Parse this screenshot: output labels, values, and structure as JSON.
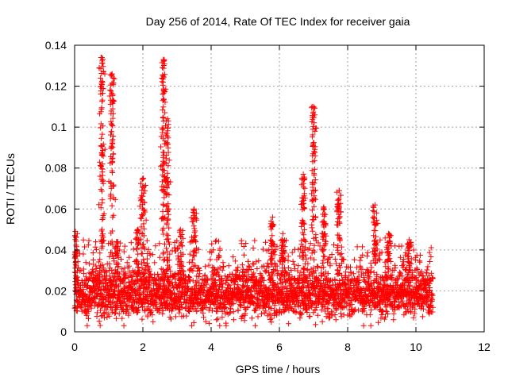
{
  "chart_data": {
    "type": "scatter",
    "title": "Day 256 of 2014, Rate Of TEC Index for receiver gaia",
    "xlabel": "GPS time / hours",
    "ylabel": "ROTI / TECUs",
    "xlim": [
      0,
      12
    ],
    "ylim": [
      0,
      0.14
    ],
    "xticks": [
      0,
      2,
      4,
      6,
      8,
      10,
      12
    ],
    "xtick_labels": [
      "0",
      "2",
      "4",
      "6",
      "8",
      "10",
      "12"
    ],
    "yticks": [
      0,
      0.02,
      0.04,
      0.06,
      0.08,
      0.1,
      0.12,
      0.14
    ],
    "ytick_labels": [
      "0",
      "0.02",
      "0.04",
      "0.06",
      "0.08",
      "0.1",
      "0.12",
      "0.14"
    ],
    "grid": true,
    "marker": "+",
    "series": [
      {
        "name": "ROTI",
        "color": "#ff0000",
        "x_range": [
          0,
          10.5
        ],
        "baseline_range": [
          0.005,
          0.03
        ],
        "spikes": [
          {
            "x": 0.02,
            "peak": 0.049
          },
          {
            "x": 0.8,
            "peak": 0.134
          },
          {
            "x": 1.1,
            "peak": 0.126
          },
          {
            "x": 1.25,
            "peak": 0.044
          },
          {
            "x": 1.85,
            "peak": 0.05
          },
          {
            "x": 2.0,
            "peak": 0.075
          },
          {
            "x": 2.6,
            "peak": 0.133
          },
          {
            "x": 2.72,
            "peak": 0.104
          },
          {
            "x": 3.1,
            "peak": 0.05
          },
          {
            "x": 3.5,
            "peak": 0.06
          },
          {
            "x": 5.8,
            "peak": 0.056
          },
          {
            "x": 6.1,
            "peak": 0.048
          },
          {
            "x": 6.7,
            "peak": 0.077
          },
          {
            "x": 7.0,
            "peak": 0.11
          },
          {
            "x": 7.3,
            "peak": 0.061
          },
          {
            "x": 7.75,
            "peak": 0.069
          },
          {
            "x": 8.8,
            "peak": 0.062
          },
          {
            "x": 9.2,
            "peak": 0.048
          },
          {
            "x": 9.8,
            "peak": 0.045
          }
        ]
      }
    ]
  }
}
